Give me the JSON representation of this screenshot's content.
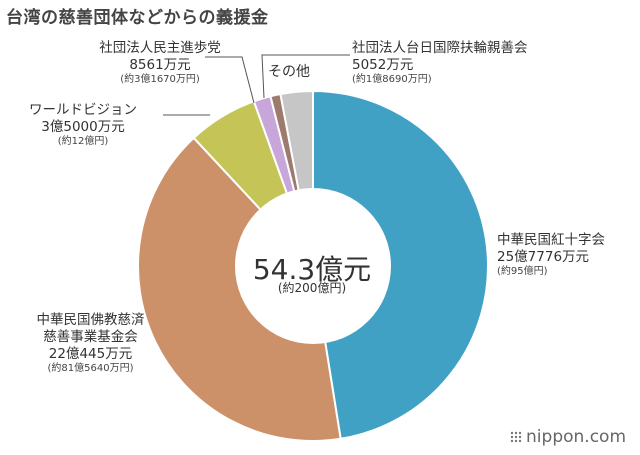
{
  "title": "台湾の慈善団体などからの義援金",
  "center": {
    "main": "54.3億元",
    "sub": "(約200億円)"
  },
  "brand": {
    "text": "nippon.com"
  },
  "chart_data": {
    "type": "pie",
    "donut": true,
    "total_label": "54.3億元",
    "slices": [
      {
        "name": "中華民国紅十字会",
        "amount": "25億7776万元",
        "jpy": "(約95億円)",
        "value": 257776,
        "color": "#41a1c4"
      },
      {
        "name": "中華民国佛教慈済慈善事業基金会",
        "name_lines": [
          "中華民国佛教慈済",
          "慈善事業基金会"
        ],
        "amount": "22億445万元",
        "jpy": "(約81億5640万円)",
        "value": 220445,
        "color": "#cd916a"
      },
      {
        "name": "ワールドビジョン",
        "amount": "3億5000万元",
        "jpy": "(約12億円)",
        "value": 35000,
        "color": "#c5c557"
      },
      {
        "name": "社団法人民主進歩党",
        "amount": "8561万元",
        "jpy": "(約3億1670万円)",
        "value": 8561,
        "color": "#c9a6da"
      },
      {
        "name": "社団法人台日国際扶輪親善会",
        "amount": "5052万元",
        "jpy": "(約1億8690万円)",
        "value": 5052,
        "color": "#9c7a6e"
      },
      {
        "name": "その他",
        "amount": "",
        "jpy": "",
        "value": 16166,
        "color": "#c6c6c6"
      }
    ]
  }
}
